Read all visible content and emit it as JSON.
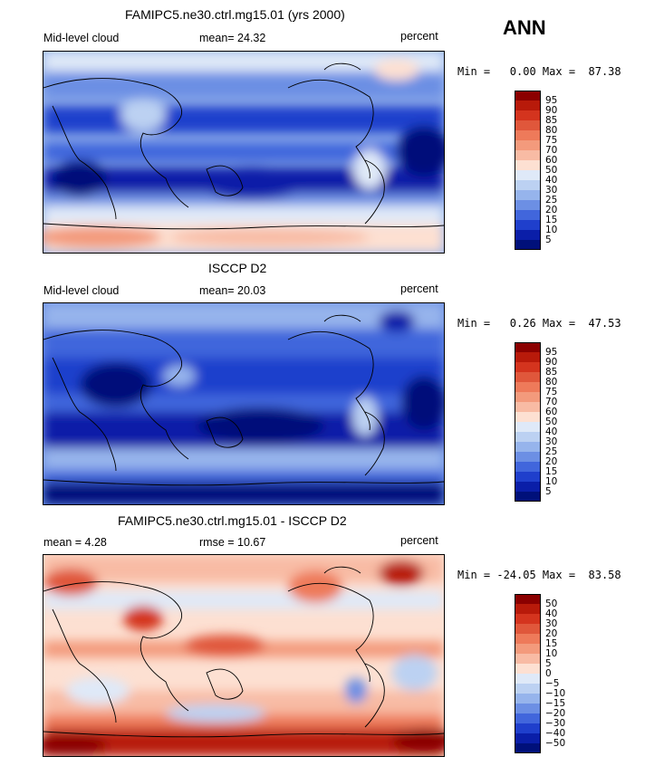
{
  "season": "ANN",
  "panels": [
    {
      "title": "FAMIPC5.ne30.ctrl.mg15.01 (yrs 2000)",
      "left_label": "Mid-level cloud",
      "center_label": "mean=  24.32",
      "units": "percent",
      "minmax": "Min =   0.00 Max =  87.38",
      "colorbar_labels": [
        "95",
        "90",
        "85",
        "80",
        "75",
        "70",
        "60",
        "50",
        "40",
        "30",
        "25",
        "20",
        "15",
        "10",
        "5"
      ]
    },
    {
      "title": "ISCCP D2",
      "left_label": "Mid-level cloud",
      "center_label": "mean=  20.03",
      "units": "percent",
      "minmax": "Min =   0.26 Max =  47.53",
      "colorbar_labels": [
        "95",
        "90",
        "85",
        "80",
        "75",
        "70",
        "60",
        "50",
        "40",
        "30",
        "25",
        "20",
        "15",
        "10",
        "5"
      ]
    },
    {
      "title": "FAMIPC5.ne30.ctrl.mg15.01 - ISCCP D2",
      "left_label": "mean =    4.28",
      "center_label": "rmse =   10.67",
      "units": "percent",
      "minmax": "Min = -24.05 Max =  83.58",
      "colorbar_labels": [
        "50",
        "40",
        "30",
        "20",
        "15",
        "10",
        "5",
        "0",
        "−5",
        "−10",
        "−15",
        "−20",
        "−30",
        "−40",
        "−50"
      ]
    }
  ],
  "colorbar_colors": [
    "#8b0000",
    "#b81a0a",
    "#d4341e",
    "#e0573b",
    "#ee7a5a",
    "#f39a7c",
    "#f8bba4",
    "#fde0d2",
    "#dfe9f8",
    "#bcd1f2",
    "#96b4ec",
    "#6c8fe4",
    "#4166dc",
    "#1f3fcc",
    "#0a1ea8",
    "#00107a"
  ]
}
